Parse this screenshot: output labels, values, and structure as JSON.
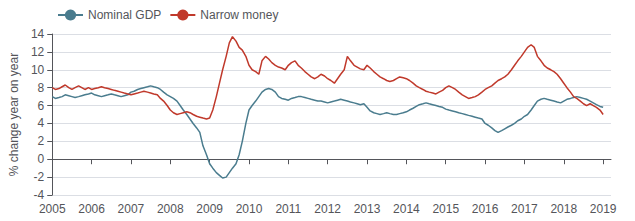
{
  "chart_data": {
    "type": "line",
    "ylabel": "% change year on year",
    "x": [
      2005.0,
      2005.08,
      2005.17,
      2005.25,
      2005.33,
      2005.42,
      2005.5,
      2005.58,
      2005.67,
      2005.75,
      2005.83,
      2005.92,
      2006.0,
      2006.08,
      2006.17,
      2006.25,
      2006.33,
      2006.42,
      2006.5,
      2006.58,
      2006.67,
      2006.75,
      2006.83,
      2006.92,
      2007.0,
      2007.08,
      2007.17,
      2007.25,
      2007.33,
      2007.42,
      2007.5,
      2007.58,
      2007.67,
      2007.75,
      2007.83,
      2007.92,
      2008.0,
      2008.08,
      2008.17,
      2008.25,
      2008.33,
      2008.42,
      2008.5,
      2008.58,
      2008.67,
      2008.75,
      2008.83,
      2008.92,
      2009.0,
      2009.08,
      2009.17,
      2009.25,
      2009.33,
      2009.42,
      2009.5,
      2009.58,
      2009.67,
      2009.75,
      2009.83,
      2009.92,
      2010.0,
      2010.08,
      2010.17,
      2010.25,
      2010.33,
      2010.42,
      2010.5,
      2010.58,
      2010.67,
      2010.75,
      2010.83,
      2010.92,
      2011.0,
      2011.08,
      2011.17,
      2011.25,
      2011.33,
      2011.42,
      2011.5,
      2011.58,
      2011.67,
      2011.75,
      2011.83,
      2011.92,
      2012.0,
      2012.08,
      2012.17,
      2012.25,
      2012.33,
      2012.42,
      2012.5,
      2012.58,
      2012.67,
      2012.75,
      2012.83,
      2012.92,
      2013.0,
      2013.08,
      2013.17,
      2013.25,
      2013.33,
      2013.42,
      2013.5,
      2013.58,
      2013.67,
      2013.75,
      2013.83,
      2013.92,
      2014.0,
      2014.08,
      2014.17,
      2014.25,
      2014.33,
      2014.42,
      2014.5,
      2014.58,
      2014.67,
      2014.75,
      2014.83,
      2014.92,
      2015.0,
      2015.08,
      2015.17,
      2015.25,
      2015.33,
      2015.42,
      2015.5,
      2015.58,
      2015.67,
      2015.75,
      2015.83,
      2015.92,
      2016.0,
      2016.08,
      2016.17,
      2016.25,
      2016.33,
      2016.42,
      2016.5,
      2016.58,
      2016.67,
      2016.75,
      2016.83,
      2016.92,
      2017.0,
      2017.08,
      2017.17,
      2017.25,
      2017.33,
      2017.42,
      2017.5,
      2017.58,
      2017.67,
      2017.75,
      2017.83,
      2017.92,
      2018.0,
      2018.08,
      2018.17,
      2018.25,
      2018.33,
      2018.42,
      2018.5,
      2018.58,
      2018.67,
      2018.75,
      2018.83,
      2018.92,
      2019.0
    ],
    "series": [
      {
        "name": "Nominal GDP",
        "color": "#4a7c8e",
        "values": [
          7.0,
          6.8,
          6.9,
          7.0,
          7.2,
          7.1,
          7.0,
          6.9,
          7.0,
          7.1,
          7.2,
          7.3,
          7.4,
          7.2,
          7.1,
          7.0,
          7.1,
          7.2,
          7.3,
          7.2,
          7.1,
          7.0,
          7.1,
          7.2,
          7.5,
          7.6,
          7.8,
          7.9,
          8.0,
          8.1,
          8.2,
          8.1,
          8.0,
          7.8,
          7.5,
          7.2,
          7.0,
          6.8,
          6.5,
          6.0,
          5.5,
          5.0,
          4.5,
          4.0,
          3.5,
          3.0,
          1.5,
          0.5,
          -0.5,
          -1.0,
          -1.5,
          -1.8,
          -2.1,
          -2.0,
          -1.5,
          -1.0,
          -0.5,
          0.5,
          2.0,
          4.0,
          5.5,
          6.0,
          6.5,
          7.0,
          7.5,
          7.8,
          7.9,
          7.8,
          7.5,
          7.0,
          6.8,
          6.7,
          6.6,
          6.8,
          6.9,
          7.0,
          7.0,
          6.9,
          6.8,
          6.7,
          6.6,
          6.5,
          6.5,
          6.4,
          6.3,
          6.4,
          6.5,
          6.6,
          6.7,
          6.6,
          6.5,
          6.4,
          6.3,
          6.2,
          6.1,
          6.2,
          5.8,
          5.4,
          5.2,
          5.1,
          5.0,
          5.1,
          5.2,
          5.1,
          5.0,
          5.0,
          5.1,
          5.2,
          5.3,
          5.5,
          5.7,
          5.9,
          6.1,
          6.2,
          6.3,
          6.2,
          6.1,
          6.0,
          5.9,
          5.8,
          5.6,
          5.5,
          5.4,
          5.3,
          5.2,
          5.1,
          5.0,
          4.9,
          4.8,
          4.7,
          4.6,
          4.5,
          4.0,
          3.8,
          3.5,
          3.2,
          3.0,
          3.2,
          3.4,
          3.6,
          3.8,
          4.0,
          4.3,
          4.5,
          4.8,
          5.0,
          5.5,
          6.0,
          6.5,
          6.7,
          6.8,
          6.7,
          6.6,
          6.5,
          6.4,
          6.3,
          6.5,
          6.7,
          6.8,
          6.9,
          7.0,
          6.9,
          6.8,
          6.7,
          6.5,
          6.3,
          6.1,
          5.9,
          5.8
        ]
      },
      {
        "name": "Narrow money",
        "color": "#c0392b",
        "values": [
          8.0,
          7.8,
          7.9,
          8.1,
          8.3,
          8.0,
          7.8,
          8.0,
          8.2,
          8.0,
          7.8,
          8.0,
          7.8,
          7.9,
          8.0,
          8.1,
          8.0,
          7.9,
          7.8,
          7.7,
          7.6,
          7.5,
          7.4,
          7.3,
          7.2,
          7.3,
          7.4,
          7.5,
          7.6,
          7.5,
          7.4,
          7.3,
          7.2,
          6.8,
          6.5,
          6.0,
          5.5,
          5.2,
          5.0,
          5.1,
          5.2,
          5.3,
          5.2,
          5.0,
          4.8,
          4.7,
          4.6,
          4.5,
          4.6,
          5.5,
          7.0,
          8.5,
          10.0,
          11.5,
          13.0,
          13.7,
          13.2,
          12.5,
          12.2,
          11.5,
          10.5,
          10.0,
          9.8,
          9.5,
          11.0,
          11.5,
          11.2,
          10.8,
          10.5,
          10.3,
          10.2,
          10.0,
          10.5,
          10.8,
          11.0,
          10.5,
          10.2,
          9.8,
          9.5,
          9.2,
          9.0,
          9.2,
          9.5,
          9.3,
          9.0,
          8.8,
          8.5,
          9.0,
          9.5,
          10.0,
          11.5,
          11.0,
          10.5,
          10.3,
          10.1,
          10.0,
          10.5,
          10.2,
          9.8,
          9.5,
          9.2,
          9.0,
          8.8,
          8.7,
          8.8,
          9.0,
          9.2,
          9.1,
          9.0,
          8.8,
          8.5,
          8.2,
          8.0,
          7.8,
          7.6,
          7.5,
          7.4,
          7.3,
          7.5,
          7.7,
          8.0,
          8.2,
          8.0,
          7.8,
          7.5,
          7.2,
          7.0,
          6.8,
          6.9,
          7.0,
          7.2,
          7.5,
          7.8,
          8.0,
          8.2,
          8.5,
          8.8,
          9.0,
          9.2,
          9.5,
          10.0,
          10.5,
          11.0,
          11.5,
          12.0,
          12.5,
          12.8,
          12.5,
          11.5,
          11.0,
          10.5,
          10.2,
          10.0,
          9.8,
          9.5,
          9.0,
          8.5,
          8.0,
          7.5,
          7.0,
          6.8,
          6.5,
          6.2,
          6.0,
          6.2,
          6.0,
          5.8,
          5.5,
          5.0
        ]
      }
    ],
    "xlim": [
      2005.0,
      2019.2
    ],
    "xticks": [
      2005,
      2006,
      2007,
      2008,
      2009,
      2010,
      2011,
      2012,
      2013,
      2014,
      2015,
      2016,
      2017,
      2018,
      2019
    ],
    "ylim": [
      -4,
      14
    ],
    "yticks": [
      -4,
      -2,
      0,
      2,
      4,
      6,
      8,
      10,
      12,
      14
    ],
    "grid": true,
    "legend": "upper left"
  }
}
